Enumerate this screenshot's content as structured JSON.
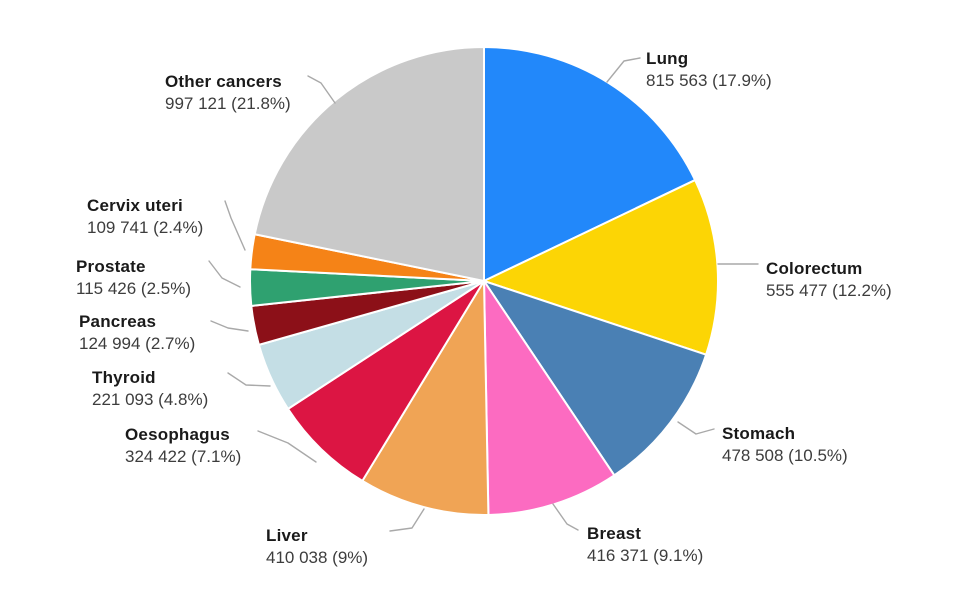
{
  "chart_data": {
    "type": "pie",
    "title": "",
    "legend_position": "none",
    "labels_style": "outside-with-leader-lines",
    "start_angle_deg": 0,
    "direction": "clockwise",
    "slices": [
      {
        "label": "Lung",
        "value": 815563,
        "value_display": "815 563",
        "percent": 17.9,
        "percent_display": "17.9%",
        "annotation": "815 563 (17.9%)",
        "color": "#2288fa"
      },
      {
        "label": "Colorectum",
        "value": 555477,
        "value_display": "555 477",
        "percent": 12.2,
        "percent_display": "12.2%",
        "annotation": "555 477 (12.2%)",
        "color": "#fcd505"
      },
      {
        "label": "Stomach",
        "value": 478508,
        "value_display": "478 508",
        "percent": 10.5,
        "percent_display": "10.5%",
        "annotation": "478 508 (10.5%)",
        "color": "#4a80b4"
      },
      {
        "label": "Breast",
        "value": 416371,
        "value_display": "416 371",
        "percent": 9.1,
        "percent_display": "9.1%",
        "annotation": "416 371 (9.1%)",
        "color": "#fc6bc1"
      },
      {
        "label": "Liver",
        "value": 410038,
        "value_display": "410 038",
        "percent": 9.0,
        "percent_display": "9%",
        "annotation": "410 038 (9%)",
        "color": "#f0a455"
      },
      {
        "label": "Oesophagus",
        "value": 324422,
        "value_display": "324 422",
        "percent": 7.1,
        "percent_display": "7.1%",
        "annotation": "324 422 (7.1%)",
        "color": "#dc1543"
      },
      {
        "label": "Thyroid",
        "value": 221093,
        "value_display": "221 093",
        "percent": 4.8,
        "percent_display": "4.8%",
        "annotation": "221 093 (4.8%)",
        "color": "#c4dee5"
      },
      {
        "label": "Pancreas",
        "value": 124994,
        "value_display": "124 994",
        "percent": 2.7,
        "percent_display": "2.7%",
        "annotation": "124 994 (2.7%)",
        "color": "#8c1018"
      },
      {
        "label": "Prostate",
        "value": 115426,
        "value_display": "115 426",
        "percent": 2.5,
        "percent_display": "2.5%",
        "annotation": "115 426 (2.5%)",
        "color": "#2fa170"
      },
      {
        "label": "Cervix uteri",
        "value": 109741,
        "value_display": "109 741",
        "percent": 2.4,
        "percent_display": "2.4%",
        "annotation": "109 741 (2.4%)",
        "color": "#f58317"
      },
      {
        "label": "Other cancers",
        "value": 997121,
        "value_display": "997 121",
        "percent": 21.8,
        "percent_display": "21.8%",
        "annotation": "997 121 (21.8%)",
        "color": "#c9c9c9"
      }
    ]
  }
}
